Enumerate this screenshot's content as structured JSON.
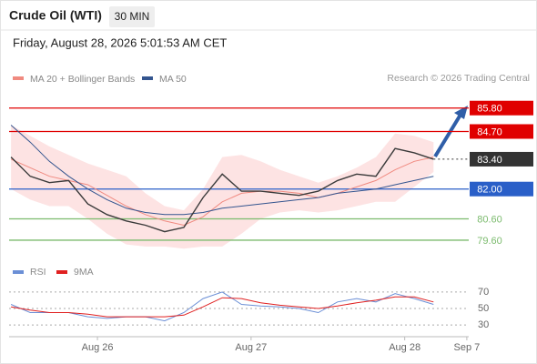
{
  "header": {
    "title": "Crude Oil (WTI)",
    "timeframe": "30 MIN",
    "timestamp": "Friday, August 28, 2026 5:01:53 AM CET"
  },
  "chart_data": [
    {
      "type": "line",
      "credit": "Research © 2026 Trading Central",
      "x": [
        -13.5,
        -10.5,
        -7.5,
        -4.5,
        -1.5,
        1.5,
        4.5,
        7.5,
        10.5,
        13.5,
        16.5,
        19.5,
        22.5,
        25.5,
        28.5,
        31.5,
        34.5,
        37.5,
        40.5,
        43.5,
        46.5,
        49.5,
        52.5
      ],
      "xlim": [
        -13.8,
        58
      ],
      "ylim": [
        78.7,
        86.6
      ],
      "price": {
        "color": "#3a3a3a",
        "values": [
          83.5,
          82.6,
          82.3,
          82.4,
          81.3,
          80.8,
          80.5,
          80.3,
          80.0,
          80.2,
          81.6,
          82.7,
          81.9,
          81.9,
          81.8,
          81.7,
          81.9,
          82.4,
          82.7,
          82.6,
          83.9,
          83.7,
          83.4
        ]
      },
      "series": [
        {
          "name": "MA 20 + Bollinger Bands",
          "color": "#f08a80",
          "band_color": "#fde3e3",
          "values": [
            83.4,
            83.0,
            82.6,
            82.4,
            82.2,
            81.7,
            81.2,
            80.8,
            80.5,
            80.3,
            80.7,
            81.4,
            81.8,
            81.9,
            81.9,
            81.8,
            81.6,
            81.8,
            82.1,
            82.4,
            82.9,
            83.3,
            83.5
          ],
          "upper": [
            85.0,
            84.5,
            84.0,
            83.6,
            83.2,
            82.9,
            82.6,
            81.8,
            81.2,
            81.0,
            82.0,
            83.5,
            83.6,
            83.3,
            82.9,
            82.6,
            82.3,
            82.6,
            83.0,
            83.5,
            84.6,
            84.5,
            84.2
          ],
          "lower": [
            82.0,
            81.5,
            81.2,
            81.2,
            80.6,
            79.9,
            79.4,
            79.3,
            79.3,
            79.2,
            79.3,
            79.3,
            79.9,
            80.6,
            80.9,
            81.0,
            80.9,
            81.0,
            81.2,
            81.4,
            81.4,
            82.1,
            82.8
          ]
        },
        {
          "name": "MA 50",
          "color": "#34558f",
          "values": [
            85.0,
            84.2,
            83.3,
            82.6,
            82.0,
            81.5,
            81.1,
            80.9,
            80.8,
            80.8,
            80.9,
            81.1,
            81.2,
            81.3,
            81.4,
            81.5,
            81.6,
            81.8,
            81.9,
            82.0,
            82.2,
            82.4,
            82.6
          ]
        }
      ],
      "levels": [
        {
          "value": 85.8,
          "label": "85.80",
          "color": "#e00000",
          "line": "solid",
          "marker": "box"
        },
        {
          "value": 84.7,
          "label": "84.70",
          "color": "#e00000",
          "line": "solid",
          "marker": "box"
        },
        {
          "value": 83.4,
          "label": "83.40",
          "color": "#333333",
          "line": "dotted",
          "marker": "box"
        },
        {
          "value": 82.0,
          "label": "82.00",
          "color": "#2a5fc8",
          "line": "solid",
          "marker": "box"
        },
        {
          "value": 80.6,
          "label": "80.60",
          "color": "#7cbb6e",
          "line": "solid",
          "marker": "text"
        },
        {
          "value": 79.6,
          "label": "79.60",
          "color": "#7cbb6e",
          "line": "solid",
          "marker": "text"
        }
      ]
    },
    {
      "type": "line",
      "x": [
        -13.5,
        -10.5,
        -7.5,
        -4.5,
        -1.5,
        1.5,
        4.5,
        7.5,
        10.5,
        13.5,
        16.5,
        19.5,
        22.5,
        25.5,
        28.5,
        31.5,
        34.5,
        37.5,
        40.5,
        43.5,
        46.5,
        49.5,
        52.5
      ],
      "xlim": [
        -13.8,
        58
      ],
      "xticks": [
        {
          "value": 0,
          "label": "Aug 26"
        },
        {
          "value": 24,
          "label": "Aug 27"
        },
        {
          "value": 48,
          "label": "Aug 28"
        },
        {
          "value": 57.7,
          "label": "Sep 7"
        }
      ],
      "ylim": [
        18,
        82
      ],
      "yticks": [
        70,
        50,
        30
      ],
      "series": [
        {
          "name": "RSI",
          "color": "#6b8fd6",
          "values": [
            55,
            45,
            45,
            45,
            40,
            38,
            40,
            40,
            35,
            45,
            62,
            70,
            55,
            53,
            52,
            50,
            45,
            58,
            62,
            58,
            68,
            62,
            55
          ]
        },
        {
          "name": "9MA",
          "color": "#e02020",
          "values": [
            52,
            48,
            45,
            45,
            43,
            40,
            40,
            40,
            40,
            42,
            52,
            63,
            62,
            57,
            54,
            52,
            50,
            53,
            57,
            60,
            64,
            64,
            58
          ]
        }
      ]
    }
  ]
}
